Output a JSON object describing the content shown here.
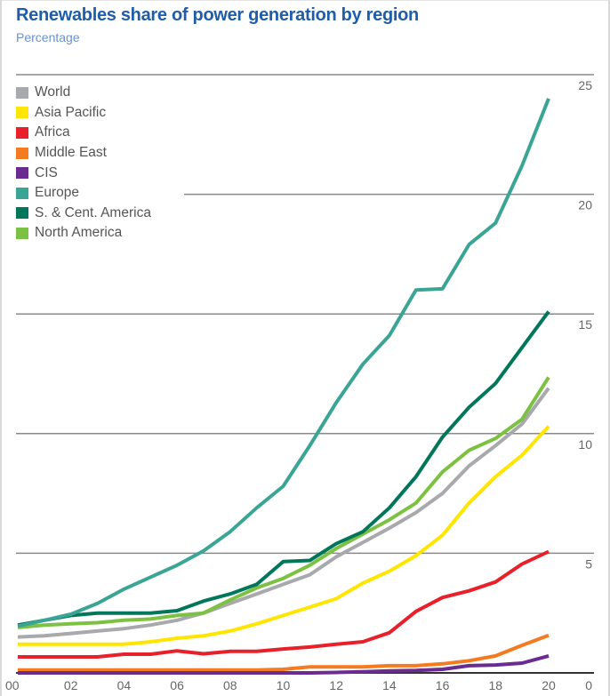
{
  "chart_data": {
    "type": "line",
    "title": "Renewables share of power generation by region",
    "subtitle": "Percentage",
    "xlabel": "",
    "ylabel": "Percentage",
    "x": [
      2000,
      2001,
      2002,
      2003,
      2004,
      2005,
      2006,
      2007,
      2008,
      2009,
      2010,
      2011,
      2012,
      2013,
      2014,
      2015,
      2016,
      2017,
      2018,
      2019,
      2020
    ],
    "x_tick_values": [
      2000,
      2002,
      2004,
      2006,
      2008,
      2010,
      2012,
      2014,
      2016,
      2018,
      2020
    ],
    "x_tick_labels": [
      "00",
      "02",
      "04",
      "06",
      "08",
      "10",
      "12",
      "14",
      "16",
      "18",
      "20"
    ],
    "y_ticks": [
      0,
      5,
      10,
      15,
      20,
      25
    ],
    "y_tick_labels": [
      "0",
      "5",
      "10",
      "15",
      "20",
      "25"
    ],
    "ylim": [
      0,
      25
    ],
    "xlim": [
      2000,
      2020
    ],
    "grid": "horizontal",
    "y_axis_side": "right",
    "legend_position": "top-left",
    "series": [
      {
        "name": "World",
        "color": "#a7a9ac",
        "values": [
          1.5,
          1.55,
          1.65,
          1.75,
          1.85,
          2.0,
          2.2,
          2.5,
          2.9,
          3.3,
          3.7,
          4.1,
          4.85,
          5.45,
          6.05,
          6.7,
          7.5,
          8.65,
          9.5,
          10.4,
          11.9
        ]
      },
      {
        "name": "Asia Pacific",
        "color": "#ffe600",
        "values": [
          1.2,
          1.2,
          1.2,
          1.2,
          1.2,
          1.3,
          1.45,
          1.55,
          1.75,
          2.05,
          2.4,
          2.75,
          3.1,
          3.75,
          4.25,
          4.9,
          5.75,
          7.1,
          8.2,
          9.1,
          10.3
        ]
      },
      {
        "name": "Africa",
        "color": "#e8202a",
        "values": [
          0.67,
          0.67,
          0.67,
          0.67,
          0.78,
          0.78,
          0.92,
          0.8,
          0.9,
          0.9,
          1.0,
          1.08,
          1.2,
          1.3,
          1.68,
          2.57,
          3.15,
          3.43,
          3.8,
          4.55,
          5.07
        ]
      },
      {
        "name": "Middle East",
        "color": "#f47b20",
        "values": [
          0.12,
          0.12,
          0.12,
          0.12,
          0.12,
          0.12,
          0.12,
          0.12,
          0.12,
          0.12,
          0.15,
          0.25,
          0.25,
          0.25,
          0.3,
          0.3,
          0.38,
          0.51,
          0.71,
          1.15,
          1.57
        ]
      },
      {
        "name": "CIS",
        "color": "#6a2c91",
        "values": [
          0.0,
          0.0,
          0.0,
          0.0,
          0.0,
          0.0,
          0.0,
          0.0,
          0.0,
          0.0,
          0.0,
          0.0,
          0.02,
          0.05,
          0.08,
          0.1,
          0.15,
          0.3,
          0.33,
          0.41,
          0.71
        ]
      },
      {
        "name": "Europe",
        "color": "#3aa594",
        "values": [
          1.95,
          2.2,
          2.45,
          2.9,
          3.5,
          4.0,
          4.5,
          5.1,
          5.9,
          6.9,
          7.8,
          9.5,
          11.3,
          12.9,
          14.1,
          16.0,
          16.05,
          17.9,
          18.8,
          21.2,
          24.0
        ]
      },
      {
        "name": "S. & Cent. America",
        "color": "#00775a",
        "values": [
          2.0,
          2.2,
          2.4,
          2.5,
          2.5,
          2.5,
          2.6,
          3.0,
          3.3,
          3.7,
          4.65,
          4.7,
          5.4,
          5.9,
          6.9,
          8.2,
          9.85,
          11.1,
          12.1,
          13.6,
          15.1
        ]
      },
      {
        "name": "North America",
        "color": "#7cc142",
        "values": [
          1.9,
          2.0,
          2.05,
          2.1,
          2.2,
          2.25,
          2.4,
          2.5,
          3.05,
          3.55,
          3.95,
          4.5,
          5.2,
          5.8,
          6.4,
          7.1,
          8.4,
          9.3,
          9.8,
          10.6,
          12.35
        ]
      }
    ]
  }
}
